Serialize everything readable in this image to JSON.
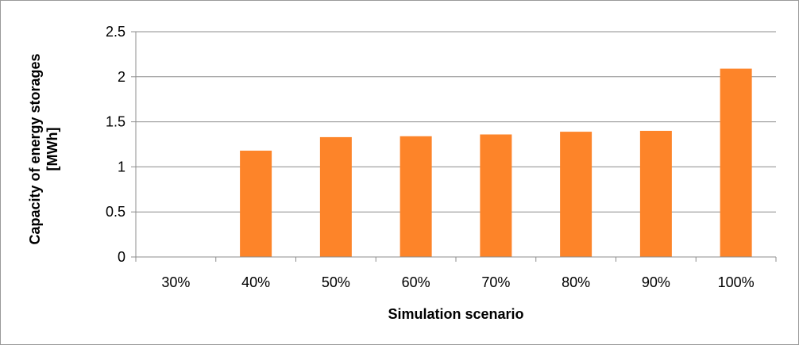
{
  "chart_data": {
    "type": "bar",
    "title": "",
    "xlabel": "Simulation scenario",
    "ylabel": "Capacity of energy storages [MWh]",
    "ylabel_lines": [
      "Capacity of energy storages",
      "[MWh]"
    ],
    "categories": [
      "30%",
      "40%",
      "50%",
      "60%",
      "70%",
      "80%",
      "90%",
      "100%"
    ],
    "values": [
      0,
      1.18,
      1.33,
      1.34,
      1.36,
      1.39,
      1.4,
      2.09
    ],
    "ylim": [
      0,
      2.5
    ],
    "yticks": [
      "0",
      "0.5",
      "1",
      "1.5",
      "2",
      "2.5"
    ],
    "ytick_values": [
      0,
      0.5,
      1,
      1.5,
      2,
      2.5
    ],
    "grid": true,
    "legend": "none",
    "colors": {
      "bar": "#fd8429",
      "grid": "#8c8c8c",
      "axis": "#8c8c8c"
    }
  }
}
